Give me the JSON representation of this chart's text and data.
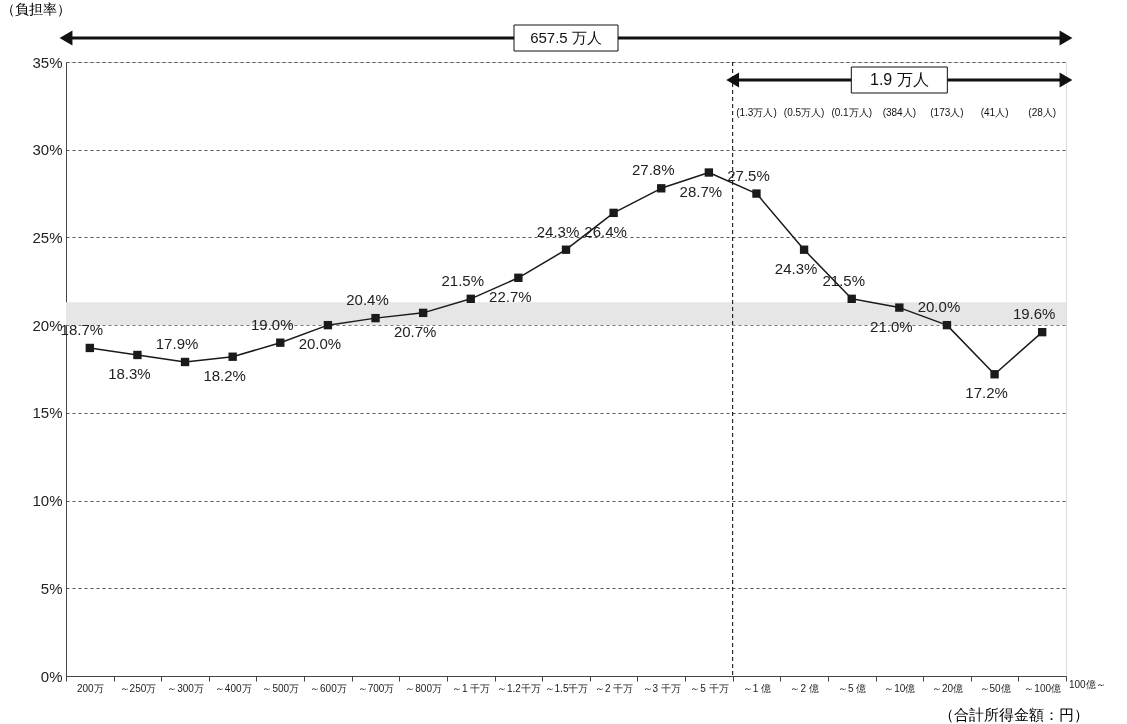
{
  "chart_data": {
    "type": "line",
    "ylabel": "（負担率）",
    "xlabel": "（合計所得金額：円）",
    "categories": [
      "200万",
      "～250万",
      "～300万",
      "～400万",
      "～500万",
      "～600万",
      "～700万",
      "～800万",
      "～1 千万",
      "～1.2千万",
      "～1.5千万",
      "～2 千万",
      "～3 千万",
      "～5 千万",
      "～1 億",
      "～2 億",
      "～5 億",
      "～10億",
      "～20億",
      "～50億",
      "～100億"
    ],
    "series": [
      {
        "color": "#1a1a1a",
        "values": [
          18.7,
          18.3,
          17.9,
          18.2,
          19.0,
          20.0,
          20.4,
          20.7,
          21.5,
          22.7,
          24.3,
          26.4,
          27.8,
          28.7,
          27.5,
          24.3,
          21.5,
          21.0,
          20.0,
          17.2,
          19.6
        ],
        "value_labels": [
          "18.7%",
          "18.3%",
          "17.9%",
          "18.2%",
          "19.0%",
          "20.0%",
          "20.4%",
          "20.7%",
          "21.5%",
          "22.7%",
          "24.3%",
          "26.4%",
          "27.8%",
          "28.7%",
          "27.5%",
          "24.3%",
          "21.5%",
          "21.0%",
          "20.0%",
          "17.2%",
          "19.6%"
        ]
      }
    ],
    "ylim": [
      0,
      35
    ],
    "yticks": [
      {
        "value": 0,
        "label": "0%"
      },
      {
        "value": 5,
        "label": "5%"
      },
      {
        "value": 10,
        "label": "10%"
      },
      {
        "value": 15,
        "label": "15%"
      },
      {
        "value": 20,
        "label": "20%"
      },
      {
        "value": 25,
        "label": "25%"
      },
      {
        "value": 30,
        "label": "30%"
      },
      {
        "value": 35,
        "label": "35%"
      }
    ],
    "grid": "y",
    "marker": "square",
    "line_style": "solid",
    "ref_lines": [
      {
        "axis": "x",
        "value": "～1 億",
        "line_style": "dashed",
        "color": "#000000"
      }
    ],
    "bands": [
      {
        "axis": "y",
        "from": 20.0,
        "to": 21.3,
        "color": "#e6e6e6"
      }
    ],
    "annotations": [
      "657.5 万人",
      "1.9 万人",
      "(1.3万人)",
      "(0.5万人)",
      "(0.1万人)",
      "(384人)",
      "(173人)",
      "(41人)",
      "(28人)",
      "100億～"
    ]
  }
}
